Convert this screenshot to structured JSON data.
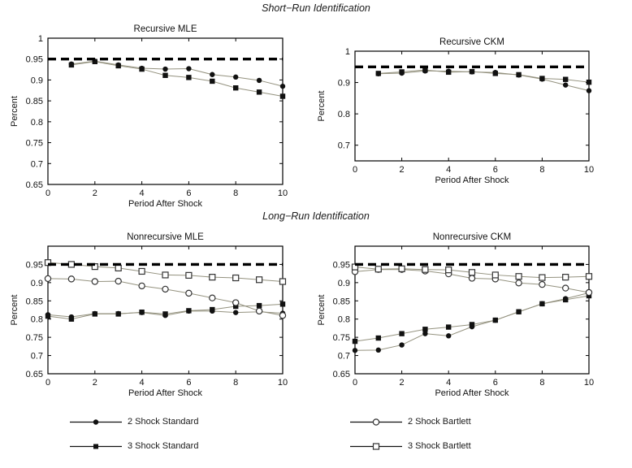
{
  "figure": {
    "sections": [
      {
        "title": "Short−Run Identification"
      },
      {
        "title": "Long−Run Identification"
      }
    ]
  },
  "colors": {
    "background": "#ffffff",
    "axis": "#000000",
    "series_line": "#94927f",
    "marker_fill": "#111111",
    "open_marker_stroke": "#333333",
    "ref_line": "#000000"
  },
  "chart_data": [
    {
      "type": "line",
      "title": "Recursive MLE",
      "xlabel": "Period After Shock",
      "ylabel": "Percent",
      "xlim": [
        0,
        10
      ],
      "ylim": [
        0.65,
        1.0
      ],
      "xticks": [
        "0",
        "2",
        "4",
        "6",
        "8",
        "10"
      ],
      "yticks": [
        "0.65",
        "0.7",
        "0.75",
        "0.8",
        "0.85",
        "0.9",
        "0.95",
        "1"
      ],
      "grid": false,
      "ref_line_y": 0.95,
      "series": [
        {
          "name": "2 Shock Standard",
          "marker": "filled-circle",
          "x": [
            1,
            2,
            3,
            4,
            5,
            6,
            7,
            8,
            9,
            10
          ],
          "values": [
            0.938,
            0.945,
            0.936,
            0.928,
            0.926,
            0.927,
            0.913,
            0.907,
            0.899,
            0.885
          ]
        },
        {
          "name": "3 Shock Standard",
          "marker": "filled-square",
          "x": [
            1,
            2,
            3,
            4,
            5,
            6,
            7,
            8,
            9,
            10
          ],
          "values": [
            0.936,
            0.944,
            0.934,
            0.926,
            0.911,
            0.906,
            0.897,
            0.881,
            0.871,
            0.861
          ]
        }
      ]
    },
    {
      "type": "line",
      "title": "Recursive CKM",
      "xlabel": "Period After Shock",
      "ylabel": "Percent",
      "xlim": [
        0,
        10
      ],
      "ylim": [
        0.65,
        1.0
      ],
      "xticks": [
        "0",
        "2",
        "4",
        "6",
        "8",
        "10"
      ],
      "yticks": [
        "0.7",
        "0.8",
        "0.9",
        "1"
      ],
      "grid": false,
      "ref_line_y": 0.95,
      "series": [
        {
          "name": "2 Shock Standard",
          "marker": "filled-circle",
          "x": [
            1,
            2,
            3,
            4,
            5,
            6,
            7,
            8,
            9,
            10
          ],
          "values": [
            0.928,
            0.93,
            0.937,
            0.936,
            0.934,
            0.932,
            0.924,
            0.911,
            0.892,
            0.874
          ]
        },
        {
          "name": "3 Shock Standard",
          "marker": "filled-square",
          "x": [
            1,
            2,
            3,
            4,
            5,
            6,
            7,
            8,
            9,
            10
          ],
          "values": [
            0.929,
            0.934,
            0.94,
            0.933,
            0.935,
            0.929,
            0.925,
            0.913,
            0.91,
            0.901
          ]
        }
      ]
    },
    {
      "type": "line",
      "title": "Nonrecursive MLE",
      "xlabel": "Period After Shock",
      "ylabel": "Percent",
      "xlim": [
        0,
        10
      ],
      "ylim": [
        0.65,
        1.0
      ],
      "xticks": [
        "0",
        "2",
        "4",
        "6",
        "8",
        "10"
      ],
      "yticks": [
        "0.65",
        "0.7",
        "0.75",
        "0.8",
        "0.85",
        "0.9",
        "0.95"
      ],
      "grid": false,
      "ref_line_y": 0.95,
      "series": [
        {
          "name": "2 Shock Standard",
          "marker": "filled-circle",
          "x": [
            0,
            1,
            2,
            3,
            4,
            5,
            6,
            7,
            8,
            9,
            10
          ],
          "values": [
            0.812,
            0.806,
            0.815,
            0.815,
            0.818,
            0.81,
            0.822,
            0.822,
            0.818,
            0.82,
            0.816
          ]
        },
        {
          "name": "3 Shock Standard",
          "marker": "filled-square",
          "x": [
            0,
            1,
            2,
            3,
            4,
            5,
            6,
            7,
            8,
            9,
            10
          ],
          "values": [
            0.808,
            0.8,
            0.814,
            0.814,
            0.819,
            0.814,
            0.823,
            0.826,
            0.835,
            0.837,
            0.841
          ]
        },
        {
          "name": "2 Shock Bartlett",
          "marker": "open-circle",
          "x": [
            0,
            1,
            2,
            3,
            4,
            5,
            6,
            7,
            8,
            9,
            10
          ],
          "values": [
            0.911,
            0.91,
            0.903,
            0.904,
            0.891,
            0.882,
            0.871,
            0.858,
            0.845,
            0.822,
            0.81
          ]
        },
        {
          "name": "3 Shock Bartlett",
          "marker": "open-square",
          "x": [
            0,
            1,
            2,
            3,
            4,
            5,
            6,
            7,
            8,
            9,
            10
          ],
          "values": [
            0.955,
            0.95,
            0.944,
            0.94,
            0.931,
            0.921,
            0.92,
            0.915,
            0.913,
            0.908,
            0.903
          ]
        }
      ]
    },
    {
      "type": "line",
      "title": "Nonrecursive CKM",
      "xlabel": "Period After Shock",
      "ylabel": "Percent",
      "xlim": [
        0,
        10
      ],
      "ylim": [
        0.65,
        1.0
      ],
      "xticks": [
        "0",
        "2",
        "4",
        "6",
        "8",
        "10"
      ],
      "yticks": [
        "0.65",
        "0.7",
        "0.75",
        "0.8",
        "0.85",
        "0.9",
        "0.95"
      ],
      "grid": false,
      "ref_line_y": 0.95,
      "series": [
        {
          "name": "2 Shock Standard",
          "marker": "filled-circle",
          "x": [
            0,
            1,
            2,
            3,
            4,
            5,
            6,
            7,
            8,
            9,
            10
          ],
          "values": [
            0.714,
            0.715,
            0.729,
            0.76,
            0.754,
            0.779,
            0.797,
            0.82,
            0.842,
            0.856,
            0.872
          ]
        },
        {
          "name": "3 Shock Standard",
          "marker": "filled-square",
          "x": [
            0,
            1,
            2,
            3,
            4,
            5,
            6,
            7,
            8,
            9,
            10
          ],
          "values": [
            0.739,
            0.748,
            0.76,
            0.772,
            0.778,
            0.785,
            0.797,
            0.82,
            0.842,
            0.853,
            0.864
          ]
        },
        {
          "name": "2 Shock Bartlett",
          "marker": "open-circle",
          "x": [
            0,
            1,
            2,
            3,
            4,
            5,
            6,
            7,
            8,
            9,
            10
          ],
          "values": [
            0.93,
            0.936,
            0.936,
            0.932,
            0.924,
            0.912,
            0.91,
            0.899,
            0.895,
            0.885,
            0.873
          ]
        },
        {
          "name": "3 Shock Bartlett",
          "marker": "open-square",
          "x": [
            0,
            1,
            2,
            3,
            4,
            5,
            6,
            7,
            8,
            9,
            10
          ],
          "values": [
            0.943,
            0.937,
            0.938,
            0.936,
            0.935,
            0.928,
            0.921,
            0.917,
            0.914,
            0.915,
            0.917
          ]
        }
      ]
    }
  ],
  "legend": {
    "items": [
      {
        "label": "2 Shock Standard",
        "marker": "filled-circle"
      },
      {
        "label": "3 Shock Standard",
        "marker": "filled-square"
      },
      {
        "label": "2 Shock Bartlett",
        "marker": "open-circle"
      },
      {
        "label": "3 Shock Bartlett",
        "marker": "open-square"
      }
    ]
  }
}
